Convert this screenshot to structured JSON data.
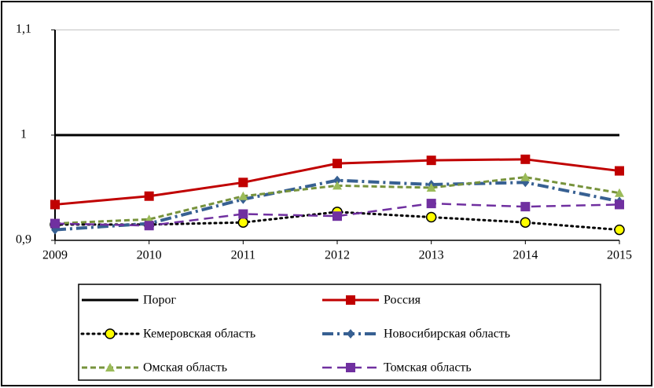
{
  "chart_data": {
    "type": "line",
    "categories": [
      "2009",
      "2010",
      "2011",
      "2012",
      "2013",
      "2014",
      "2015"
    ],
    "ylim": [
      0.9,
      1.1
    ],
    "yticks": [
      {
        "value": 0.9,
        "label": "0,9"
      },
      1,
      {
        "value": 1.1,
        "label": "1,1"
      }
    ],
    "grid": true,
    "legend": "bottom",
    "series": [
      {
        "name": "Порог",
        "color": "#000000",
        "marker": "none",
        "dash": "solid",
        "values": [
          1,
          1,
          1,
          1,
          1,
          1,
          1
        ]
      },
      {
        "name": "Россия",
        "color": "#c00000",
        "marker": "square",
        "dash": "solid",
        "values": [
          0.934,
          0.942,
          0.955,
          0.973,
          0.976,
          0.977,
          0.966
        ]
      },
      {
        "name": "Кемеровская область",
        "color": "#000000",
        "marker": "circle",
        "markerFill": "#ffff00",
        "dash": "dotted",
        "values": [
          0.915,
          0.915,
          0.917,
          0.927,
          0.922,
          0.917,
          0.91
        ]
      },
      {
        "name": "Новосибирская область",
        "color": "#376092",
        "marker": "diamond",
        "dash": "dashdot",
        "values": [
          0.91,
          0.916,
          0.939,
          0.957,
          0.953,
          0.955,
          0.937
        ]
      },
      {
        "name": "Омская область",
        "color": "#77933c",
        "marker": "triangle",
        "markerFill": "#9bbb59",
        "dash": "dashed",
        "values": [
          0.916,
          0.92,
          0.942,
          0.952,
          0.95,
          0.96,
          0.945
        ]
      },
      {
        "name": "Томская область",
        "color": "#7030a0",
        "marker": "square",
        "dash": "longdash",
        "values": [
          0.916,
          0.914,
          0.925,
          0.923,
          0.935,
          0.932,
          0.934
        ]
      }
    ]
  }
}
